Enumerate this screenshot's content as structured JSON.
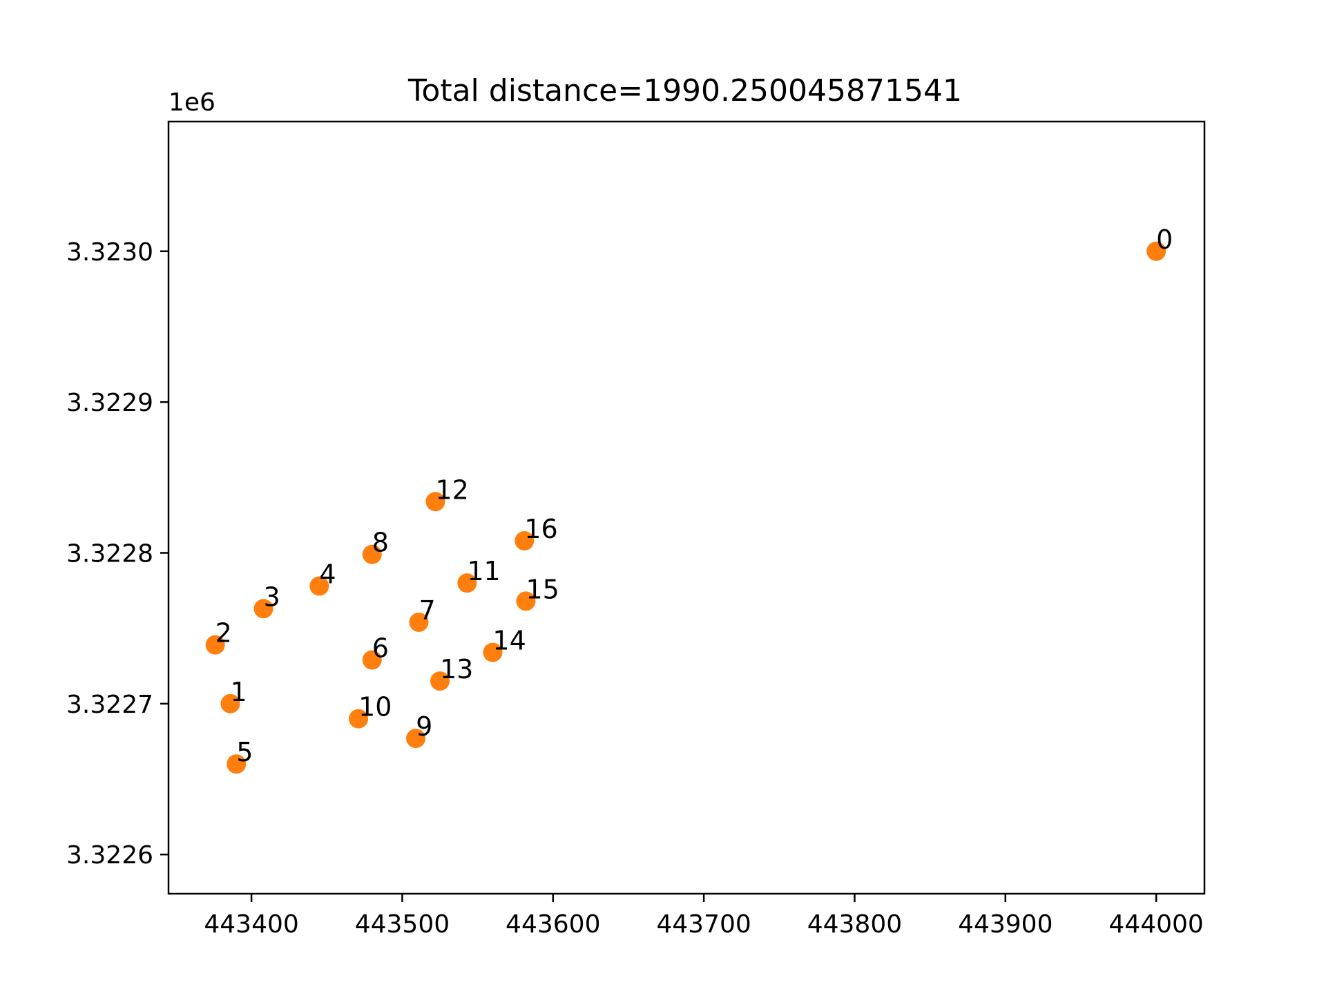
{
  "chart_data": {
    "type": "scatter",
    "title": "Total distance=1990.250045871541",
    "xlabel": "",
    "ylabel": "",
    "y_offset_label": "1e6",
    "xlim": [
      443345,
      444032
    ],
    "ylim": [
      3322574,
      3323086
    ],
    "x_ticks": [
      443400,
      443500,
      443600,
      443700,
      443800,
      443900,
      444000
    ],
    "x_tick_labels": [
      "443400",
      "443500",
      "443600",
      "443700",
      "443800",
      "443900",
      "444000"
    ],
    "y_ticks": [
      3322600,
      3322700,
      3322800,
      3322900,
      3323000
    ],
    "y_tick_labels": [
      "3.3226",
      "3.3227",
      "3.3228",
      "3.3229",
      "3.3230"
    ],
    "grid": false,
    "marker_color": "#ff7f0e",
    "points": [
      {
        "label": "0",
        "x": 444000,
        "y": 3323000
      },
      {
        "label": "1",
        "x": 443386,
        "y": 3322700
      },
      {
        "label": "2",
        "x": 443376,
        "y": 3322739
      },
      {
        "label": "3",
        "x": 443408,
        "y": 3322763
      },
      {
        "label": "4",
        "x": 443445,
        "y": 3322778
      },
      {
        "label": "5",
        "x": 443390,
        "y": 3322660
      },
      {
        "label": "6",
        "x": 443480,
        "y": 3322729
      },
      {
        "label": "7",
        "x": 443511,
        "y": 3322754
      },
      {
        "label": "8",
        "x": 443480,
        "y": 3322799
      },
      {
        "label": "9",
        "x": 443509,
        "y": 3322677
      },
      {
        "label": "10",
        "x": 443471,
        "y": 3322690
      },
      {
        "label": "11",
        "x": 443543,
        "y": 3322780
      },
      {
        "label": "12",
        "x": 443522,
        "y": 3322834
      },
      {
        "label": "13",
        "x": 443525,
        "y": 3322715
      },
      {
        "label": "14",
        "x": 443560,
        "y": 3322734
      },
      {
        "label": "15",
        "x": 443582,
        "y": 3322768
      },
      {
        "label": "16",
        "x": 443581,
        "y": 3322808
      }
    ]
  }
}
